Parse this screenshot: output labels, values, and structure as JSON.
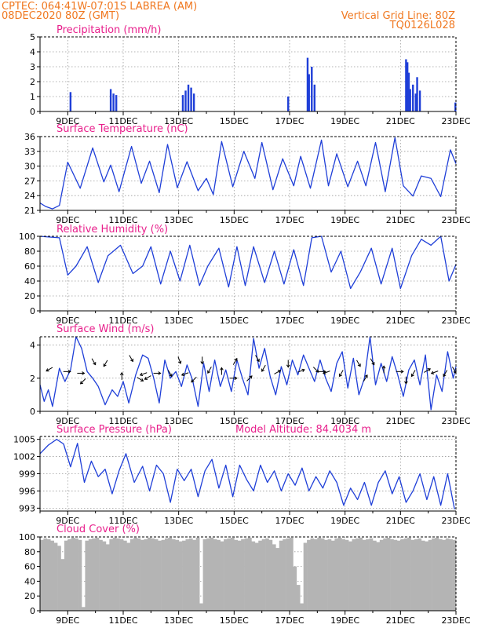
{
  "header": {
    "line1": "CPTEC:   064:41W-07:01S   LABREA (AM)",
    "line2": "08DEC2020 80Z (GMT)",
    "right1": "Vertical Grid Line: 80Z",
    "right2": "TQ0126L028",
    "color": "#f07820"
  },
  "colors": {
    "title": "#e8208c",
    "series": "#1f3fd8",
    "cloud": "#b4b4b4",
    "grid": "#9a9a9a"
  },
  "x_axis": {
    "start_day": 8,
    "end_day": 23,
    "tick_labels": [
      "9DEC",
      "11DEC",
      "13DEC",
      "15DEC",
      "17DEC",
      "19DEC",
      "21DEC",
      "23DEC"
    ],
    "tick_days": [
      9,
      11,
      13,
      15,
      17,
      19,
      21,
      23
    ]
  },
  "chart_data": [
    {
      "type": "bar",
      "title": "Precipitation (mm/h)",
      "ylim": [
        0,
        5
      ],
      "yticks": [
        "0",
        "1",
        "2",
        "3",
        "4",
        "5"
      ],
      "x": [
        9.1,
        10.55,
        10.65,
        10.75,
        13.15,
        13.25,
        13.35,
        13.45,
        13.55,
        16.95,
        17.65,
        17.7,
        17.8,
        17.9,
        21.2,
        21.25,
        21.3,
        21.35,
        21.45,
        21.55,
        21.6,
        21.7,
        22.98
      ],
      "values": [
        1.3,
        1.5,
        1.2,
        1.1,
        1.1,
        1.4,
        1.8,
        1.6,
        1.2,
        1.0,
        3.6,
        2.5,
        3.0,
        1.8,
        3.5,
        3.3,
        2.6,
        1.5,
        1.8,
        1.2,
        2.3,
        1.4,
        0.6
      ]
    },
    {
      "type": "line",
      "title": "Surface Temperature (nC)",
      "ylim": [
        21,
        36
      ],
      "yticks": [
        "21",
        "24",
        "27",
        "30",
        "33",
        "36"
      ],
      "x": [
        8.0,
        8.2,
        8.45,
        8.7,
        9.0,
        9.45,
        9.9,
        10.3,
        10.55,
        10.85,
        11.3,
        11.65,
        11.95,
        12.3,
        12.6,
        12.95,
        13.3,
        13.7,
        14.0,
        14.25,
        14.55,
        14.95,
        15.35,
        15.75,
        16.0,
        16.4,
        16.75,
        17.15,
        17.4,
        17.75,
        18.15,
        18.4,
        18.7,
        19.1,
        19.45,
        19.75,
        20.1,
        20.45,
        20.8,
        21.1,
        21.45,
        21.75,
        22.1,
        22.45,
        22.8,
        23.0
      ],
      "values": [
        22.5,
        21.8,
        21.3,
        22.0,
        30.8,
        25.5,
        33.7,
        26.8,
        30.2,
        24.8,
        34.0,
        26.5,
        31.0,
        24.6,
        34.4,
        25.6,
        30.9,
        25.0,
        27.5,
        24.2,
        35.0,
        25.8,
        33.0,
        27.5,
        34.8,
        25.2,
        31.5,
        26.0,
        32.0,
        25.5,
        35.3,
        26.0,
        32.5,
        25.8,
        31.0,
        26.0,
        34.8,
        24.8,
        35.8,
        26.0,
        23.9,
        28.0,
        27.5,
        23.8,
        33.3,
        30.5
      ]
    },
    {
      "type": "line",
      "title": "Relative Humidity (%)",
      "ylim": [
        0,
        100
      ],
      "yticks": [
        "0",
        "20",
        "40",
        "60",
        "80",
        "100"
      ],
      "x": [
        8.0,
        8.3,
        8.7,
        9.0,
        9.3,
        9.7,
        10.1,
        10.45,
        10.9,
        11.35,
        11.7,
        12.0,
        12.35,
        12.7,
        13.05,
        13.4,
        13.75,
        14.05,
        14.45,
        14.8,
        15.1,
        15.4,
        15.7,
        16.1,
        16.45,
        16.8,
        17.15,
        17.5,
        17.8,
        18.15,
        18.5,
        18.85,
        19.2,
        19.55,
        19.95,
        20.3,
        20.7,
        21.0,
        21.4,
        21.75,
        22.1,
        22.45,
        22.75,
        23.0
      ],
      "values": [
        100,
        99,
        98,
        48,
        60,
        86,
        38,
        74,
        88,
        50,
        60,
        86,
        36,
        80,
        40,
        88,
        34,
        60,
        84,
        32,
        86,
        34,
        86,
        38,
        80,
        36,
        82,
        34,
        98,
        100,
        52,
        80,
        30,
        52,
        84,
        36,
        84,
        30,
        74,
        96,
        88,
        100,
        40,
        62
      ]
    },
    {
      "type": "line",
      "title": "Surface Wind (m/s)",
      "ylim": [
        0,
        4.5
      ],
      "yticks": [
        "0",
        "2",
        "4"
      ],
      "annotation": "wind direction arrows",
      "x": [
        8.0,
        8.15,
        8.3,
        8.45,
        8.7,
        8.9,
        9.1,
        9.3,
        9.5,
        9.7,
        9.9,
        10.1,
        10.35,
        10.6,
        10.8,
        11.0,
        11.2,
        11.45,
        11.7,
        11.9,
        12.1,
        12.3,
        12.5,
        12.7,
        12.9,
        13.1,
        13.3,
        13.5,
        13.7,
        13.9,
        14.1,
        14.3,
        14.5,
        14.7,
        14.9,
        15.1,
        15.3,
        15.5,
        15.7,
        15.9,
        16.1,
        16.3,
        16.5,
        16.7,
        16.9,
        17.1,
        17.3,
        17.5,
        17.7,
        17.9,
        18.1,
        18.3,
        18.5,
        18.7,
        18.9,
        19.1,
        19.3,
        19.5,
        19.7,
        19.9,
        20.1,
        20.3,
        20.5,
        20.7,
        20.9,
        21.1,
        21.3,
        21.5,
        21.7,
        21.9,
        22.1,
        22.3,
        22.5,
        22.7,
        22.9,
        23.0
      ],
      "values": [
        1.6,
        0.6,
        1.3,
        0.3,
        2.6,
        1.8,
        2.5,
        4.6,
        3.8,
        2.4,
        2.0,
        1.5,
        0.4,
        1.3,
        0.9,
        1.8,
        0.5,
        2.2,
        3.4,
        3.2,
        2.0,
        0.5,
        3.1,
        2.0,
        2.4,
        1.5,
        2.8,
        1.9,
        0.3,
        2.9,
        1.2,
        3.1,
        1.5,
        2.5,
        1.2,
        3.1,
        2.0,
        1.0,
        4.4,
        2.6,
        3.8,
        2.1,
        1.0,
        2.7,
        1.6,
        3.1,
        2.2,
        3.4,
        2.6,
        1.8,
        3.1,
        2.0,
        1.2,
        2.9,
        3.6,
        1.4,
        3.2,
        1.0,
        2.0,
        4.5,
        1.6,
        2.9,
        1.8,
        3.3,
        2.2,
        0.9,
        2.5,
        3.1,
        1.6,
        3.4,
        0.1,
        2.2,
        1.2,
        3.6,
        2.0,
        2.7
      ],
      "arrows": [
        {
          "x": 8.4,
          "y": 2.6,
          "angle": 210
        },
        {
          "x": 8.9,
          "y": 2.4,
          "angle": 0
        },
        {
          "x": 9.4,
          "y": 2.3,
          "angle": 0
        },
        {
          "x": 9.6,
          "y": 1.9,
          "angle": 225
        },
        {
          "x": 9.9,
          "y": 3.1,
          "angle": 300
        },
        {
          "x": 10.4,
          "y": 3.0,
          "angle": 240
        },
        {
          "x": 10.95,
          "y": 2.0,
          "angle": 90
        },
        {
          "x": 11.25,
          "y": 3.3,
          "angle": 300
        },
        {
          "x": 11.55,
          "y": 2.0,
          "angle": 330
        },
        {
          "x": 11.8,
          "y": 2.3,
          "angle": 200
        },
        {
          "x": 11.95,
          "y": 2.1,
          "angle": 210
        },
        {
          "x": 12.15,
          "y": 2.3,
          "angle": 0
        },
        {
          "x": 12.65,
          "y": 2.4,
          "angle": 300
        },
        {
          "x": 13.0,
          "y": 3.2,
          "angle": 290
        },
        {
          "x": 13.3,
          "y": 2.3,
          "angle": 200
        },
        {
          "x": 13.6,
          "y": 2.0,
          "angle": 225
        },
        {
          "x": 13.85,
          "y": 3.2,
          "angle": 270
        },
        {
          "x": 14.15,
          "y": 2.6,
          "angle": 240
        },
        {
          "x": 14.55,
          "y": 2.3,
          "angle": 90
        },
        {
          "x": 14.9,
          "y": 2.0,
          "angle": 0
        },
        {
          "x": 15.0,
          "y": 2.9,
          "angle": 60
        },
        {
          "x": 15.5,
          "y": 1.9,
          "angle": 45
        },
        {
          "x": 15.8,
          "y": 3.3,
          "angle": 300
        },
        {
          "x": 16.1,
          "y": 2.7,
          "angle": 240
        },
        {
          "x": 16.5,
          "y": 2.3,
          "angle": 30
        },
        {
          "x": 16.95,
          "y": 3.0,
          "angle": 270
        },
        {
          "x": 17.35,
          "y": 2.4,
          "angle": 20
        },
        {
          "x": 17.9,
          "y": 2.6,
          "angle": 315
        },
        {
          "x": 18.1,
          "y": 2.4,
          "angle": 0
        },
        {
          "x": 18.4,
          "y": 2.4,
          "angle": 200
        },
        {
          "x": 18.9,
          "y": 2.4,
          "angle": 240
        },
        {
          "x": 19.45,
          "y": 3.0,
          "angle": 300
        },
        {
          "x": 19.7,
          "y": 1.9,
          "angle": 60
        },
        {
          "x": 19.95,
          "y": 3.1,
          "angle": 300
        },
        {
          "x": 20.4,
          "y": 2.4,
          "angle": 90
        },
        {
          "x": 20.9,
          "y": 2.4,
          "angle": 0
        },
        {
          "x": 21.2,
          "y": 2.0,
          "angle": 270
        },
        {
          "x": 21.5,
          "y": 2.4,
          "angle": 240
        },
        {
          "x": 21.9,
          "y": 2.4,
          "angle": 30
        },
        {
          "x": 22.3,
          "y": 2.4,
          "angle": 200
        },
        {
          "x": 22.65,
          "y": 2.4,
          "angle": 240
        },
        {
          "x": 22.9,
          "y": 2.6,
          "angle": 300
        }
      ]
    },
    {
      "type": "line",
      "title": "Surface Pressure (hPa)",
      "subtitle": "Model Altitude: 84.4034 m",
      "ylim": [
        992.5,
        1005.5
      ],
      "yticks": [
        "993",
        "996",
        "999",
        "1002",
        "1005"
      ],
      "x": [
        8.0,
        8.3,
        8.6,
        8.85,
        9.1,
        9.35,
        9.6,
        9.85,
        10.1,
        10.35,
        10.6,
        10.85,
        11.1,
        11.4,
        11.7,
        11.95,
        12.2,
        12.45,
        12.7,
        12.95,
        13.2,
        13.45,
        13.7,
        13.95,
        14.2,
        14.45,
        14.7,
        14.95,
        15.2,
        15.45,
        15.7,
        15.95,
        16.2,
        16.45,
        16.7,
        16.95,
        17.2,
        17.45,
        17.7,
        17.95,
        18.2,
        18.45,
        18.7,
        18.95,
        19.2,
        19.45,
        19.7,
        19.95,
        20.2,
        20.45,
        20.7,
        20.95,
        21.2,
        21.45,
        21.7,
        21.95,
        22.2,
        22.45,
        22.7,
        22.95
      ],
      "values": [
        1002.5,
        1004.0,
        1005.0,
        1004.2,
        1000.2,
        1004.3,
        997.5,
        1001.2,
        998.5,
        999.8,
        995.5,
        999.5,
        1002.5,
        997.5,
        1000.3,
        996.0,
        1000.5,
        999.0,
        994.0,
        999.8,
        997.8,
        999.8,
        995.0,
        999.5,
        1001.5,
        996.5,
        1000.5,
        995.0,
        1000.5,
        998.0,
        996.0,
        1000.5,
        997.5,
        999.5,
        996.0,
        999.0,
        997.0,
        1000.0,
        996.0,
        998.5,
        996.5,
        999.5,
        997.5,
        993.5,
        996.5,
        994.5,
        997.5,
        993.5,
        997.5,
        999.5,
        995.5,
        998.5,
        994.0,
        996.0,
        999.0,
        994.5,
        998.5,
        993.5,
        999.0,
        992.8
      ]
    },
    {
      "type": "bar",
      "title": "Cloud Cover (%)",
      "ylim": [
        0,
        100
      ],
      "yticks": [
        "0",
        "20",
        "40",
        "60",
        "80",
        "100"
      ],
      "notes": "approximate; mostly overcast 90-100% with occasional clear gaps",
      "x": [
        8.0,
        8.125,
        8.25,
        8.375,
        8.5,
        8.625,
        8.75,
        8.875,
        9.0,
        9.125,
        9.25,
        9.375,
        9.5,
        9.625,
        9.75,
        9.875,
        10.0,
        10.125,
        10.25,
        10.375,
        10.5,
        10.625,
        10.75,
        10.875,
        11.0,
        11.125,
        11.25,
        11.375,
        11.5,
        11.625,
        11.75,
        11.875,
        12.0,
        12.125,
        12.25,
        12.375,
        12.5,
        12.625,
        12.75,
        12.875,
        13.0,
        13.125,
        13.25,
        13.375,
        13.5,
        13.625,
        13.75,
        13.875,
        14.0,
        14.125,
        14.25,
        14.375,
        14.5,
        14.625,
        14.75,
        14.875,
        15.0,
        15.125,
        15.25,
        15.375,
        15.5,
        15.625,
        15.75,
        15.875,
        16.0,
        16.125,
        16.25,
        16.375,
        16.5,
        16.625,
        16.75,
        16.875,
        17.0,
        17.125,
        17.25,
        17.375,
        17.5,
        17.625,
        17.75,
        17.875,
        18.0,
        18.125,
        18.25,
        18.375,
        18.5,
        18.625,
        18.75,
        18.875,
        19.0,
        19.125,
        19.25,
        19.375,
        19.5,
        19.625,
        19.75,
        19.875,
        20.0,
        20.125,
        20.25,
        20.375,
        20.5,
        20.625,
        20.75,
        20.875,
        21.0,
        21.125,
        21.25,
        21.375,
        21.5,
        21.625,
        21.75,
        21.875,
        22.0,
        22.125,
        22.25,
        22.375,
        22.5,
        22.625,
        22.75,
        22.875
      ],
      "values": [
        96,
        98,
        97,
        95,
        92,
        88,
        70,
        95,
        97,
        99,
        98,
        96,
        5,
        95,
        97,
        98,
        99,
        96,
        94,
        90,
        97,
        99,
        98,
        97,
        95,
        92,
        97,
        99,
        98,
        96,
        97,
        99,
        98,
        97,
        95,
        96,
        98,
        99,
        97,
        96,
        94,
        95,
        97,
        98,
        96,
        99,
        10,
        97,
        98,
        99,
        97,
        96,
        94,
        97,
        98,
        99,
        96,
        95,
        97,
        98,
        99,
        94,
        92,
        95,
        97,
        98,
        96,
        90,
        85,
        95,
        97,
        98,
        99,
        60,
        35,
        10,
        92,
        96,
        98,
        97,
        99,
        98,
        96,
        97,
        95,
        98,
        99,
        97,
        96,
        94,
        97,
        98,
        99,
        96,
        97,
        98,
        95,
        93,
        96,
        98,
        99,
        97,
        96,
        95,
        97,
        98,
        99,
        96,
        97,
        98,
        95,
        94,
        96,
        98,
        99,
        97,
        96,
        98,
        97,
        96
      ]
    }
  ]
}
